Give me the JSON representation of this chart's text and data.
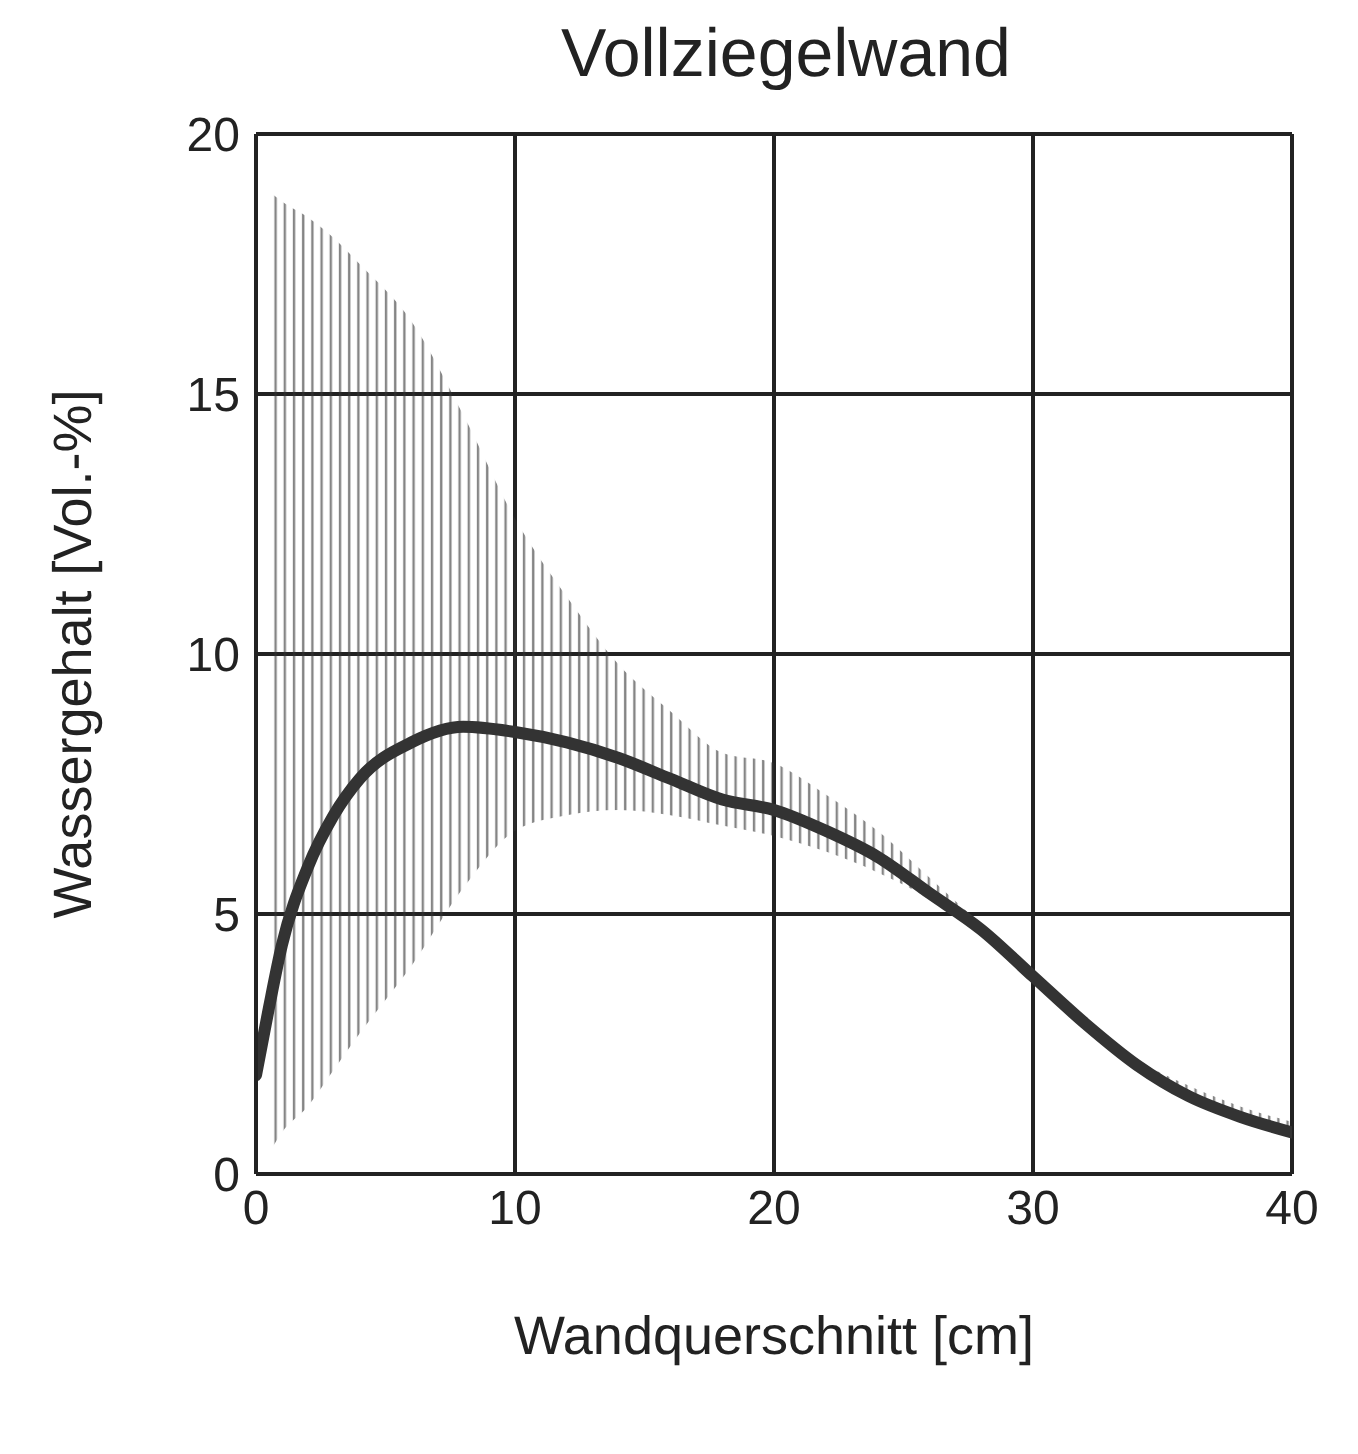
{
  "chart_data": {
    "type": "line",
    "title": "Vollziegelwand",
    "xlabel": "Wandquerschnitt [cm]",
    "ylabel": "Wassergehalt [Vol.-%]",
    "x": [
      0,
      0.5,
      1,
      2,
      3,
      4,
      6,
      8,
      10,
      12,
      14,
      16,
      18,
      20,
      22,
      24,
      26,
      28,
      30,
      32,
      34,
      36,
      38,
      40
    ],
    "series": [
      {
        "color": "#333333",
        "values": [
          1.9,
          3.2,
          4.4,
          5.9,
          6.9,
          7.6,
          8.3,
          8.6,
          8.5,
          8.3,
          8.0,
          7.6,
          7.2,
          7.0,
          6.6,
          6.1,
          5.4,
          4.7,
          3.8,
          2.9,
          2.1,
          1.5,
          1.1,
          0.8
        ],
        "lower": [
          null,
          0.4,
          0.8,
          1.3,
          2.0,
          2.7,
          4.0,
          5.5,
          6.6,
          6.9,
          7.0,
          6.9,
          6.7,
          6.5,
          6.2,
          5.8,
          5.3,
          4.7,
          3.8,
          2.9,
          2.1,
          1.5,
          1.1,
          0.8
        ],
        "upper": [
          null,
          18.9,
          18.7,
          18.4,
          18.0,
          17.5,
          16.4,
          14.6,
          12.6,
          11.1,
          9.8,
          8.9,
          8.1,
          7.9,
          7.3,
          6.6,
          5.7,
          4.8,
          3.9,
          3.0,
          2.2,
          1.7,
          1.3,
          1.0
        ]
      }
    ],
    "xlim": [
      0,
      40
    ],
    "xticks": [
      0,
      10,
      20,
      30,
      40
    ],
    "ylim": [
      0,
      20
    ],
    "yticks": [
      0,
      5,
      10,
      15,
      20
    ],
    "grid": true,
    "marker": "none",
    "line_style": "solid"
  }
}
